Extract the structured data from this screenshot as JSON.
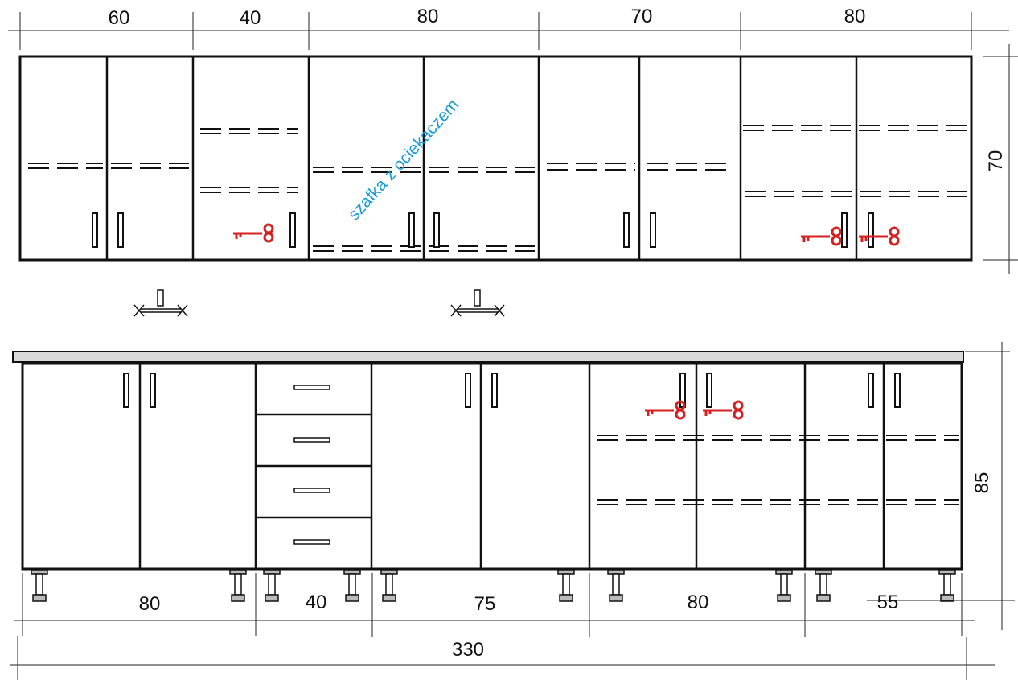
{
  "upper": {
    "widths": [
      "60",
      "40",
      "80",
      "70",
      "80"
    ],
    "height": "70",
    "note": "szafka z ociekaczem"
  },
  "lower": {
    "widths": [
      "80",
      "40",
      "75",
      "80",
      "55"
    ],
    "height": "85",
    "total": "330"
  },
  "colors": {
    "key": "#d42020",
    "note": "#1a9bd7",
    "line": "#111111"
  },
  "icons": [
    "key-icon",
    "faucet-icon",
    "handle-icon",
    "leg-icon"
  ]
}
